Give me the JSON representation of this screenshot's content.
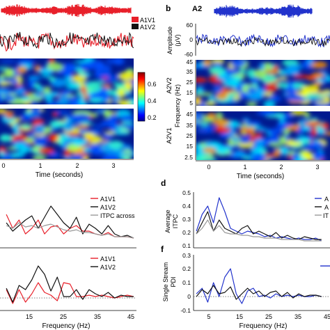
{
  "panel_labels": {
    "b": "b",
    "d": "d",
    "f": "f"
  },
  "panel_a": {
    "legend": [
      {
        "label": "A1V1",
        "color": "#e8202a"
      },
      {
        "label": "A1V2",
        "color": "#111111"
      }
    ],
    "spectrogram_time_label": "Time (seconds)",
    "time_ticks": [
      "0",
      "1",
      "2",
      "3"
    ],
    "colorbar_ticks": [
      "0.6",
      "0.4",
      "0.2"
    ]
  },
  "panel_b": {
    "title": "A2",
    "amplitude_label_line1": "Amplitude",
    "amplitude_label_line2": "(μV)",
    "amplitude_ticks": [
      "60",
      "0",
      "-60"
    ],
    "row_label_top": "A2V2",
    "row_label_bottom": "A2V1",
    "frequency_label": "Frequency (Hz)",
    "frequency_ticks_top": [
      "45",
      "35",
      "25",
      "15",
      "5"
    ],
    "frequency_ticks_bottom": [
      "45",
      "35",
      "25",
      "15",
      "2.5"
    ],
    "time_label": "Time (seconds)",
    "time_ticks": [
      "0",
      "1",
      "2",
      "3"
    ]
  },
  "panel_c": {
    "legend": [
      {
        "label": "A1V1",
        "color": "#e8202a"
      },
      {
        "label": "A1V2",
        "color": "#111111"
      },
      {
        "label": "ITPC across",
        "color": "#999999"
      }
    ]
  },
  "panel_e": {
    "legend": [
      {
        "label": "A1V1",
        "color": "#e8202a"
      },
      {
        "label": "A1V2",
        "color": "#111111"
      }
    ],
    "xlabel": "Frequency (Hz)",
    "x_ticks": [
      "15",
      "25",
      "35",
      "45"
    ]
  },
  "panel_d": {
    "ylabel_line1": "Average",
    "ylabel_line2": "ITPC",
    "y_ticks": [
      "0.5",
      "0.4",
      "0.3",
      "0.2",
      "0.1"
    ],
    "legend_fragments": [
      "A",
      "A",
      "IT"
    ]
  },
  "panel_f": {
    "ylabel_line1": "Single Stream",
    "ylabel_line2": "PDI",
    "y_ticks": [
      "0.3",
      "0.2",
      "0.1",
      "0",
      "-0.1"
    ],
    "xlabel": "Frequency (Hz)",
    "x_ticks": [
      "5",
      "15",
      "25",
      "35",
      "45"
    ]
  },
  "chart_data": [
    {
      "type": "line",
      "panel": "c",
      "x": [
        5,
        7,
        9,
        11,
        13,
        15,
        17,
        19,
        21,
        23,
        25,
        27,
        29,
        31,
        33,
        35,
        37,
        39,
        41,
        43,
        45
      ],
      "series": [
        {
          "name": "A1V1",
          "color": "#e8202a",
          "values": [
            0.34,
            0.24,
            0.3,
            0.2,
            0.24,
            0.3,
            0.2,
            0.25,
            0.26,
            0.2,
            0.24,
            0.26,
            0.22,
            0.22,
            0.2,
            0.19,
            0.21,
            0.18,
            0.18,
            0.18,
            0.17
          ]
        },
        {
          "name": "A1V2",
          "color": "#111111",
          "values": [
            0.28,
            0.22,
            0.26,
            0.3,
            0.33,
            0.24,
            0.32,
            0.4,
            0.34,
            0.28,
            0.24,
            0.32,
            0.2,
            0.27,
            0.24,
            0.2,
            0.26,
            0.2,
            0.18,
            0.19,
            0.17
          ]
        },
        {
          "name": "ITPC across",
          "color": "#999999",
          "values": [
            0.26,
            0.24,
            0.28,
            0.25,
            0.26,
            0.24,
            0.26,
            0.27,
            0.25,
            0.23,
            0.22,
            0.23,
            0.21,
            0.21,
            0.2,
            0.19,
            0.2,
            0.18,
            0.18,
            0.18,
            0.17
          ]
        }
      ],
      "xlim": [
        3,
        45
      ],
      "ylim": [
        0.1,
        0.5
      ]
    },
    {
      "type": "line",
      "panel": "e",
      "x": [
        5,
        7,
        9,
        11,
        13,
        15,
        17,
        19,
        21,
        23,
        25,
        27,
        29,
        31,
        33,
        35,
        37,
        39,
        41,
        43,
        45
      ],
      "series": [
        {
          "name": "A1V1",
          "color": "#e8202a",
          "values": [
            0.05,
            -0.05,
            0.05,
            -0.04,
            0.02,
            0.1,
            0.03,
            0.01,
            -0.03,
            0.1,
            0.09,
            0.0,
            0.0,
            0.01,
            0.0,
            0.01,
            0.0,
            -0.01,
            0.0,
            0.01,
            0.0
          ]
        },
        {
          "name": "A1V2",
          "color": "#111111",
          "values": [
            0.06,
            -0.04,
            0.08,
            0.05,
            0.12,
            0.22,
            0.16,
            0.04,
            0.14,
            0.0,
            0.0,
            0.05,
            -0.02,
            0.05,
            0.02,
            0.0,
            0.03,
            -0.01,
            0.01,
            0.0,
            0.0
          ]
        }
      ],
      "xlim": [
        3,
        45
      ],
      "ylim": [
        -0.1,
        0.3
      ]
    },
    {
      "type": "line",
      "panel": "d",
      "x": [
        1,
        3,
        5,
        7,
        9,
        11,
        13,
        15,
        17,
        19,
        21,
        23,
        25,
        27,
        29,
        31,
        33,
        35,
        37,
        39,
        41,
        43,
        45
      ],
      "series": [
        {
          "color": "#2233cc",
          "values": [
            0.22,
            0.34,
            0.4,
            0.28,
            0.46,
            0.36,
            0.24,
            0.22,
            0.2,
            0.22,
            0.21,
            0.2,
            0.18,
            0.19,
            0.17,
            0.18,
            0.17,
            0.16,
            0.17,
            0.16,
            0.16,
            0.17,
            0.15
          ]
        },
        {
          "color": "#111111",
          "values": [
            0.2,
            0.28,
            0.36,
            0.22,
            0.3,
            0.24,
            0.22,
            0.2,
            0.24,
            0.26,
            0.2,
            0.22,
            0.2,
            0.18,
            0.21,
            0.17,
            0.19,
            0.17,
            0.16,
            0.18,
            0.17,
            0.16,
            0.16
          ]
        },
        {
          "color": "#999999",
          "values": [
            0.2,
            0.24,
            0.3,
            0.22,
            0.26,
            0.21,
            0.2,
            0.2,
            0.19,
            0.19,
            0.18,
            0.18,
            0.17,
            0.17,
            0.17,
            0.16,
            0.16,
            0.16,
            0.16,
            0.15,
            0.15,
            0.15,
            0.15
          ]
        }
      ],
      "xlim": [
        0,
        48
      ],
      "ylim": [
        0.1,
        0.5
      ]
    },
    {
      "type": "line",
      "panel": "f",
      "x": [
        1,
        3,
        5,
        7,
        9,
        11,
        13,
        15,
        17,
        19,
        21,
        23,
        25,
        27,
        29,
        31,
        33,
        35,
        37,
        39,
        41,
        43,
        45
      ],
      "series": [
        {
          "color": "#2233cc",
          "values": [
            0.02,
            0.06,
            -0.04,
            0.1,
            0.0,
            0.14,
            0.2,
            0.02,
            -0.05,
            0.04,
            0.06,
            0.0,
            0.01,
            -0.01,
            0.02,
            0.0,
            0.01,
            0.0,
            0.01,
            0.0,
            0.0,
            0.01,
            0.0
          ]
        },
        {
          "color": "#111111",
          "values": [
            0.0,
            0.05,
            0.02,
            0.08,
            0.02,
            0.03,
            0.07,
            -0.02,
            0.02,
            0.06,
            0.02,
            0.04,
            0.0,
            0.03,
            0.04,
            0.0,
            0.03,
            -0.01,
            0.02,
            0.0,
            0.01,
            0.01,
            0.0
          ]
        }
      ],
      "xlim": [
        0,
        48
      ],
      "ylim": [
        -0.1,
        0.3
      ]
    }
  ]
}
